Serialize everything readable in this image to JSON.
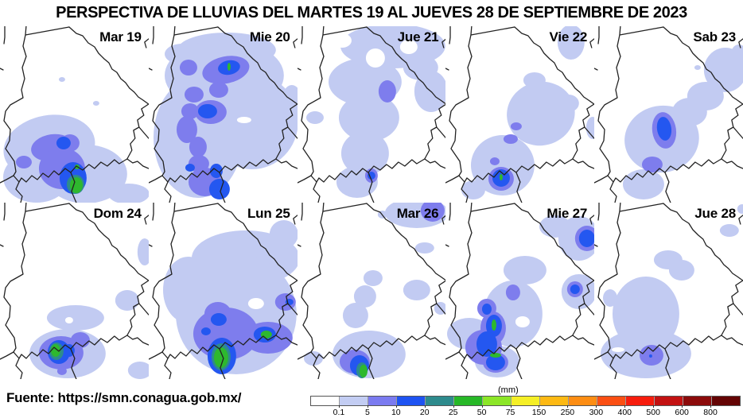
{
  "title": "PERSPECTIVA DE LLUVIAS DEL MARTES 19 AL JUEVES 28 DE SEPTIEMBRE DE 2023",
  "source": "Fuente: https://smn.conagua.gob.mx/",
  "legend": {
    "unit": "(mm)",
    "tick_labels": [
      "0.1",
      "5",
      "10",
      "20",
      "25",
      "50",
      "75",
      "150",
      "250",
      "300",
      "400",
      "500",
      "600",
      "800"
    ],
    "colors": [
      "#ffffff",
      "#c3cdf3",
      "#7b7bf0",
      "#1e53f2",
      "#2e8b8d",
      "#27b827",
      "#8ce627",
      "#f5ef26",
      "#fdb913",
      "#fd8d13",
      "#fb4f13",
      "#f71d0d",
      "#c31212",
      "#8c0b0b",
      "#640404"
    ]
  },
  "map_colors": {
    "light": "#c2cbf2",
    "medium": "#7e7ded",
    "blue": "#2457f0",
    "teal": "#2e8b8d",
    "green": "#2eb82e",
    "border": "#222222"
  },
  "panels": [
    {
      "label": "Mar 19",
      "blobs": [
        [
          "l1",
          62,
          152,
          58,
          40,
          -10
        ],
        [
          "l1",
          46,
          190,
          42,
          32,
          0
        ],
        [
          "l1",
          108,
          186,
          52,
          37,
          0
        ],
        [
          "l1",
          162,
          211,
          26,
          13,
          0
        ],
        [
          "l1",
          78,
          67,
          4,
          3,
          0
        ],
        [
          "l1",
          121,
          97,
          4,
          3,
          0
        ],
        [
          "l2",
          66,
          153,
          27,
          17,
          -8
        ],
        [
          "l2",
          88,
          147,
          12,
          11,
          0
        ],
        [
          "l2",
          78,
          179,
          29,
          26,
          0
        ],
        [
          "l2",
          30,
          171,
          10,
          8,
          0
        ],
        [
          "l3",
          80,
          147,
          9,
          8,
          0
        ],
        [
          "l3",
          92,
          191,
          17,
          20,
          0
        ],
        [
          "l4",
          95,
          199,
          11,
          12,
          0
        ],
        [
          "l5",
          96,
          200,
          8,
          10,
          0
        ],
        [
          "l5",
          97,
          177,
          3,
          3,
          0
        ]
      ]
    },
    {
      "label": "Mie 20",
      "blobs": [
        [
          "l1",
          98,
          30,
          62,
          22,
          0
        ],
        [
          "l1",
          95,
          62,
          75,
          45,
          0
        ],
        [
          "l1",
          62,
          140,
          56,
          76,
          0
        ],
        [
          "l1",
          130,
          120,
          58,
          60,
          0
        ],
        [
          "l1",
          180,
          95,
          13,
          21,
          0
        ],
        [
          "l1",
          42,
          35,
          22,
          13,
          0
        ],
        [
          "w",
          101,
          65,
          9,
          6,
          0
        ],
        [
          "w",
          120,
          118,
          9,
          4,
          0
        ],
        [
          "l2",
          97,
          55,
          30,
          17,
          -12
        ],
        [
          "l2",
          50,
          52,
          11,
          10,
          0
        ],
        [
          "l2",
          57,
          86,
          12,
          10,
          0
        ],
        [
          "l2",
          52,
          107,
          11,
          10,
          0
        ],
        [
          "l2",
          48,
          130,
          13,
          17,
          0
        ],
        [
          "l2",
          62,
          152,
          11,
          13,
          0
        ],
        [
          "l2",
          63,
          173,
          13,
          11,
          0
        ],
        [
          "l2",
          71,
          196,
          21,
          18,
          0
        ],
        [
          "l2",
          88,
          80,
          12,
          10,
          0
        ],
        [
          "l2",
          78,
          108,
          20,
          15,
          0
        ],
        [
          "l3",
          101,
          52,
          14,
          9,
          -10
        ],
        [
          "l3",
          74,
          107,
          12,
          9,
          0
        ],
        [
          "l3",
          85,
          182,
          8,
          9,
          0
        ],
        [
          "l3",
          89,
          205,
          13,
          13,
          0
        ],
        [
          "l3",
          52,
          178,
          6,
          5,
          0
        ],
        [
          "l5",
          101,
          51,
          2,
          5,
          0
        ]
      ]
    },
    {
      "label": "Jue 21",
      "blobs": [
        [
          "l1",
          120,
          25,
          66,
          28,
          0
        ],
        [
          "l1",
          155,
          52,
          22,
          16,
          0
        ],
        [
          "l1",
          168,
          82,
          21,
          26,
          0
        ],
        [
          "l1",
          85,
          70,
          46,
          30,
          0
        ],
        [
          "l1",
          90,
          115,
          38,
          30,
          0
        ],
        [
          "l1",
          85,
          160,
          30,
          28,
          0
        ],
        [
          "l1",
          75,
          196,
          26,
          20,
          0
        ],
        [
          "l1",
          22,
          115,
          11,
          8,
          0
        ],
        [
          "w",
          56,
          18,
          12,
          9,
          0
        ],
        [
          "w",
          98,
          40,
          12,
          12,
          0
        ],
        [
          "w",
          140,
          26,
          11,
          9,
          0
        ],
        [
          "l2",
          113,
          82,
          11,
          14,
          0
        ],
        [
          "l2",
          93,
          188,
          8,
          9,
          0
        ],
        [
          "l3",
          93,
          188,
          5,
          5,
          0
        ]
      ]
    },
    {
      "label": "Vie 22",
      "blobs": [
        [
          "l1",
          158,
          20,
          17,
          22,
          0
        ],
        [
          "l1",
          112,
          68,
          14,
          10,
          0
        ],
        [
          "l1",
          120,
          110,
          43,
          40,
          -15
        ],
        [
          "l1",
          72,
          175,
          40,
          38,
          0
        ],
        [
          "l1",
          155,
          97,
          13,
          11,
          0
        ],
        [
          "l1",
          185,
          128,
          8,
          14,
          0
        ],
        [
          "l1",
          35,
          206,
          15,
          12,
          0
        ],
        [
          "l2",
          89,
          126,
          7,
          5,
          0
        ],
        [
          "l2",
          82,
          142,
          9,
          6,
          0
        ],
        [
          "l2",
          62,
          170,
          6,
          5,
          0
        ],
        [
          "l2",
          70,
          192,
          16,
          15,
          0
        ],
        [
          "l3",
          70,
          191,
          11,
          11,
          0
        ],
        [
          "l5",
          70,
          190,
          2,
          4,
          0
        ]
      ]
    },
    {
      "label": "Sab 23",
      "blobs": [
        [
          "l1",
          165,
          55,
          27,
          28,
          0
        ],
        [
          "l1",
          182,
          35,
          10,
          12,
          0
        ],
        [
          "l1",
          140,
          88,
          23,
          18,
          0
        ],
        [
          "l1",
          120,
          108,
          22,
          18,
          0
        ],
        [
          "l1",
          85,
          142,
          47,
          42,
          -10
        ],
        [
          "l1",
          62,
          199,
          26,
          19,
          0
        ],
        [
          "l1",
          130,
          52,
          4,
          3,
          0
        ],
        [
          "l2",
          88,
          131,
          15,
          23,
          -8
        ],
        [
          "l2",
          73,
          174,
          13,
          10,
          0
        ],
        [
          "l3",
          88,
          129,
          9,
          15,
          -8
        ]
      ]
    },
    {
      "label": "Dom 24",
      "blobs": [
        [
          "l1",
          95,
          145,
          36,
          16,
          0
        ],
        [
          "l1",
          85,
          190,
          48,
          31,
          0
        ],
        [
          "l1",
          160,
          123,
          15,
          13,
          0
        ],
        [
          "l1",
          182,
          62,
          9,
          17,
          0
        ],
        [
          "l1",
          176,
          211,
          15,
          11,
          0
        ],
        [
          "w",
          87,
          148,
          5,
          4,
          0
        ],
        [
          "l2",
          77,
          189,
          28,
          21,
          0
        ],
        [
          "l2",
          101,
          173,
          12,
          10,
          0
        ],
        [
          "l2",
          78,
          212,
          6,
          5,
          0
        ],
        [
          "l3",
          74,
          188,
          14,
          15,
          0
        ],
        [
          "l3",
          87,
          186,
          7,
          8,
          0
        ],
        [
          "l4",
          71,
          187,
          9,
          11,
          0
        ],
        [
          "l5",
          70,
          186,
          6,
          8,
          0
        ]
      ]
    },
    {
      "label": "Lun 25",
      "blobs": [
        [
          "l1",
          122,
          70,
          68,
          35,
          0
        ],
        [
          "l1",
          110,
          140,
          76,
          76,
          0
        ],
        [
          "l1",
          50,
          110,
          32,
          42,
          0
        ],
        [
          "l1",
          170,
          40,
          18,
          18,
          0
        ],
        [
          "w",
          135,
          127,
          10,
          7,
          0
        ],
        [
          "l2",
          97,
          165,
          41,
          33,
          0
        ],
        [
          "l2",
          150,
          170,
          31,
          20,
          0
        ],
        [
          "l2",
          87,
          140,
          17,
          15,
          0
        ],
        [
          "l2",
          172,
          125,
          13,
          11,
          0
        ],
        [
          "l3",
          88,
          147,
          10,
          8,
          0
        ],
        [
          "l3",
          72,
          162,
          6,
          5,
          0
        ],
        [
          "l3",
          92,
          193,
          18,
          23,
          0
        ],
        [
          "l3",
          146,
          166,
          14,
          10,
          0
        ],
        [
          "l3",
          177,
          125,
          5,
          4,
          0
        ],
        [
          "l4",
          91,
          194,
          12,
          17,
          0
        ],
        [
          "l5",
          91,
          195,
          9,
          13,
          0
        ],
        [
          "l5",
          148,
          166,
          7,
          5,
          0
        ]
      ]
    },
    {
      "label": "Mar 26",
      "blobs": [
        [
          "l1",
          150,
          13,
          40,
          19,
          0
        ],
        [
          "l1",
          107,
          15,
          6,
          5,
          0
        ],
        [
          "l1",
          160,
          57,
          12,
          7,
          0
        ],
        [
          "l1",
          150,
          110,
          17,
          13,
          0
        ],
        [
          "l1",
          180,
          133,
          8,
          8,
          0
        ],
        [
          "l1",
          95,
          95,
          12,
          10,
          0
        ],
        [
          "l1",
          85,
          118,
          14,
          14,
          0
        ],
        [
          "l1",
          73,
          142,
          16,
          16,
          0
        ],
        [
          "l1",
          90,
          191,
          46,
          30,
          0
        ],
        [
          "l1",
          20,
          196,
          12,
          9,
          0
        ],
        [
          "l2",
          170,
          10,
          15,
          14,
          0
        ],
        [
          "l2",
          72,
          200,
          19,
          15,
          0
        ],
        [
          "l3",
          78,
          205,
          12,
          13,
          0
        ],
        [
          "l4",
          81,
          211,
          7,
          10,
          0
        ],
        [
          "l5",
          83,
          212,
          5,
          8,
          0
        ]
      ]
    },
    {
      "label": "Mie 27",
      "blobs": [
        [
          "l1",
          168,
          45,
          26,
          28,
          0
        ],
        [
          "l1",
          138,
          30,
          20,
          14,
          0
        ],
        [
          "l1",
          100,
          85,
          27,
          18,
          0
        ],
        [
          "l1",
          168,
          112,
          22,
          22,
          0
        ],
        [
          "l1",
          85,
          140,
          37,
          42,
          0
        ],
        [
          "l1",
          30,
          165,
          28,
          20,
          0
        ],
        [
          "l1",
          65,
          200,
          28,
          20,
          0
        ],
        [
          "w",
          97,
          150,
          9,
          7,
          0
        ],
        [
          "l2",
          178,
          45,
          15,
          16,
          0
        ],
        [
          "l2",
          85,
          113,
          9,
          10,
          0
        ],
        [
          "l2",
          163,
          109,
          10,
          10,
          0
        ],
        [
          "l2",
          52,
          133,
          12,
          12,
          0
        ],
        [
          "l2",
          60,
          158,
          16,
          21,
          0
        ],
        [
          "l2",
          48,
          182,
          23,
          22,
          0
        ],
        [
          "l2",
          63,
          201,
          16,
          13,
          0
        ],
        [
          "l3",
          178,
          45,
          10,
          11,
          0
        ],
        [
          "l3",
          163,
          109,
          6,
          6,
          0
        ],
        [
          "l3",
          52,
          134,
          6,
          7,
          0
        ],
        [
          "l3",
          61,
          155,
          10,
          14,
          0
        ],
        [
          "l3",
          52,
          178,
          13,
          16,
          0
        ],
        [
          "l3",
          63,
          201,
          12,
          10,
          0
        ],
        [
          "l5",
          61,
          154,
          3,
          7,
          0
        ],
        [
          "l5",
          63,
          192,
          7,
          3,
          0
        ]
      ]
    },
    {
      "label": "Jue 28",
      "blobs": [
        [
          "l1",
          93,
          72,
          18,
          12,
          0
        ],
        [
          "l1",
          110,
          85,
          16,
          13,
          0
        ],
        [
          "l1",
          65,
          140,
          42,
          47,
          0
        ],
        [
          "l1",
          65,
          190,
          57,
          31,
          0
        ],
        [
          "l1",
          20,
          120,
          9,
          11,
          0
        ],
        [
          "l1",
          170,
          35,
          12,
          8,
          0
        ],
        [
          "l1",
          186,
          8,
          6,
          6,
          0
        ],
        [
          "w",
          30,
          185,
          8,
          3,
          0
        ],
        [
          "l2",
          72,
          192,
          15,
          13,
          0
        ],
        [
          "l3",
          71,
          193,
          2,
          2,
          0
        ]
      ]
    }
  ]
}
